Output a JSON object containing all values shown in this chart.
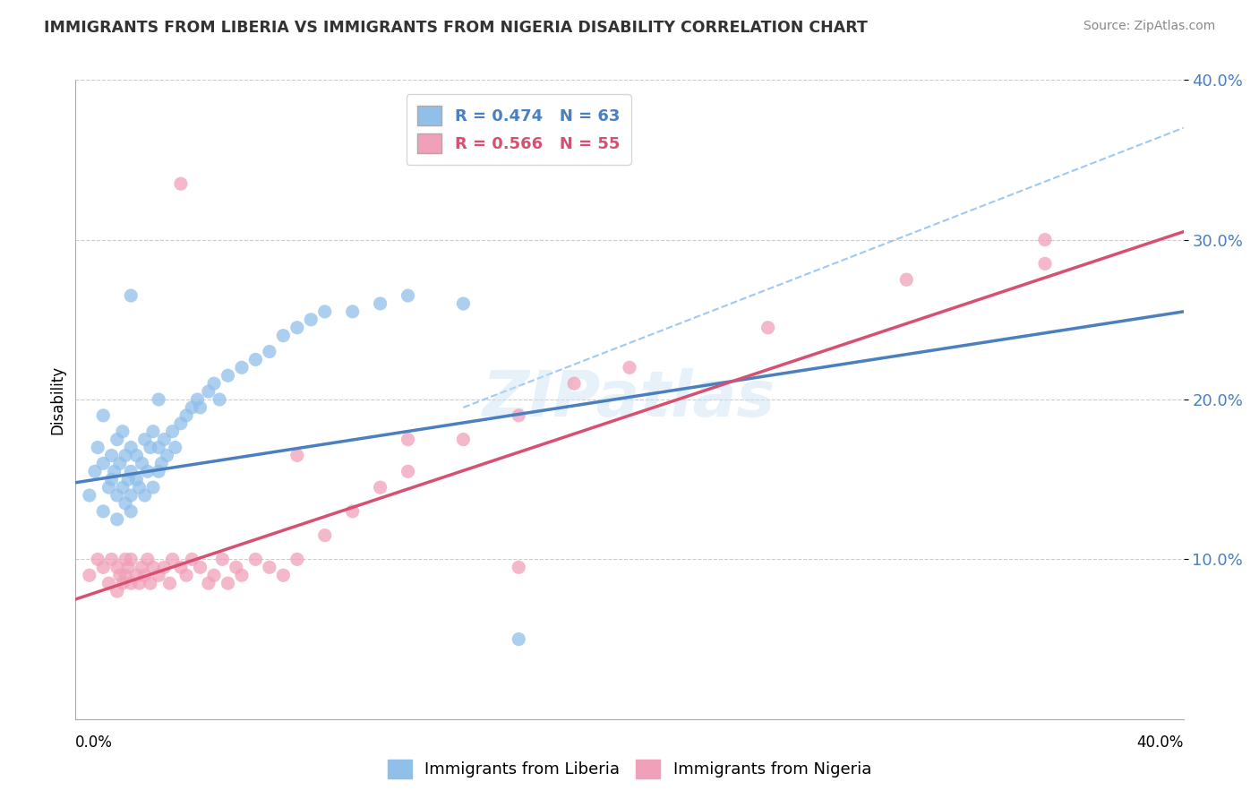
{
  "title": "IMMIGRANTS FROM LIBERIA VS IMMIGRANTS FROM NIGERIA DISABILITY CORRELATION CHART",
  "source": "Source: ZipAtlas.com",
  "ylabel": "Disability",
  "xlim": [
    0.0,
    0.4
  ],
  "ylim": [
    0.0,
    0.4
  ],
  "ytick_vals": [
    0.1,
    0.2,
    0.3,
    0.4
  ],
  "ytick_labels": [
    "10.0%",
    "20.0%",
    "30.0%",
    "40.0%"
  ],
  "liberia_color": "#90C0EA",
  "nigeria_color": "#F0A0B8",
  "liberia_line_color": "#4A7FC0",
  "nigeria_line_color": "#D85070",
  "dashed_line_color": "#A0C8F0",
  "liberia_label": "Immigrants from Liberia",
  "nigeria_label": "Immigrants from Nigeria",
  "liberia_R": "R = 0.474",
  "liberia_N": "N = 63",
  "nigeria_R": "R = 0.566",
  "nigeria_N": "N = 55",
  "watermark": "ZIPatlas",
  "liberia_line_x0": 0.0,
  "liberia_line_y0": 0.148,
  "liberia_line_x1": 0.4,
  "liberia_line_y1": 0.255,
  "nigeria_line_x0": 0.0,
  "nigeria_line_y0": 0.075,
  "nigeria_line_x1": 0.4,
  "nigeria_line_y1": 0.305,
  "dashed_line_x0": 0.14,
  "dashed_line_y0": 0.195,
  "dashed_line_x1": 0.4,
  "dashed_line_y1": 0.37,
  "liberia_scatter_x": [
    0.005,
    0.007,
    0.008,
    0.01,
    0.01,
    0.01,
    0.012,
    0.013,
    0.013,
    0.014,
    0.015,
    0.015,
    0.015,
    0.016,
    0.017,
    0.017,
    0.018,
    0.018,
    0.019,
    0.02,
    0.02,
    0.02,
    0.02,
    0.022,
    0.022,
    0.023,
    0.024,
    0.025,
    0.025,
    0.026,
    0.027,
    0.028,
    0.028,
    0.03,
    0.03,
    0.031,
    0.032,
    0.033,
    0.035,
    0.036,
    0.038,
    0.04,
    0.042,
    0.044,
    0.045,
    0.048,
    0.05,
    0.052,
    0.055,
    0.06,
    0.065,
    0.07,
    0.075,
    0.08,
    0.085,
    0.09,
    0.1,
    0.11,
    0.12,
    0.14,
    0.16,
    0.02,
    0.03
  ],
  "liberia_scatter_y": [
    0.14,
    0.155,
    0.17,
    0.13,
    0.16,
    0.19,
    0.145,
    0.15,
    0.165,
    0.155,
    0.125,
    0.14,
    0.175,
    0.16,
    0.145,
    0.18,
    0.135,
    0.165,
    0.15,
    0.13,
    0.14,
    0.155,
    0.17,
    0.15,
    0.165,
    0.145,
    0.16,
    0.14,
    0.175,
    0.155,
    0.17,
    0.145,
    0.18,
    0.155,
    0.17,
    0.16,
    0.175,
    0.165,
    0.18,
    0.17,
    0.185,
    0.19,
    0.195,
    0.2,
    0.195,
    0.205,
    0.21,
    0.2,
    0.215,
    0.22,
    0.225,
    0.23,
    0.24,
    0.245,
    0.25,
    0.255,
    0.255,
    0.26,
    0.265,
    0.26,
    0.05,
    0.265,
    0.2
  ],
  "nigeria_scatter_x": [
    0.005,
    0.008,
    0.01,
    0.012,
    0.013,
    0.015,
    0.015,
    0.016,
    0.017,
    0.018,
    0.018,
    0.019,
    0.02,
    0.02,
    0.022,
    0.023,
    0.024,
    0.025,
    0.026,
    0.027,
    0.028,
    0.03,
    0.032,
    0.034,
    0.035,
    0.038,
    0.04,
    0.042,
    0.045,
    0.048,
    0.05,
    0.053,
    0.055,
    0.058,
    0.06,
    0.065,
    0.07,
    0.075,
    0.08,
    0.09,
    0.1,
    0.11,
    0.12,
    0.14,
    0.16,
    0.18,
    0.2,
    0.25,
    0.3,
    0.35,
    0.038,
    0.08,
    0.12,
    0.16,
    0.35
  ],
  "nigeria_scatter_y": [
    0.09,
    0.1,
    0.095,
    0.085,
    0.1,
    0.08,
    0.095,
    0.09,
    0.085,
    0.09,
    0.1,
    0.095,
    0.085,
    0.1,
    0.09,
    0.085,
    0.095,
    0.09,
    0.1,
    0.085,
    0.095,
    0.09,
    0.095,
    0.085,
    0.1,
    0.095,
    0.09,
    0.1,
    0.095,
    0.085,
    0.09,
    0.1,
    0.085,
    0.095,
    0.09,
    0.1,
    0.095,
    0.09,
    0.1,
    0.115,
    0.13,
    0.145,
    0.155,
    0.175,
    0.19,
    0.21,
    0.22,
    0.245,
    0.275,
    0.285,
    0.335,
    0.165,
    0.175,
    0.095,
    0.3
  ]
}
